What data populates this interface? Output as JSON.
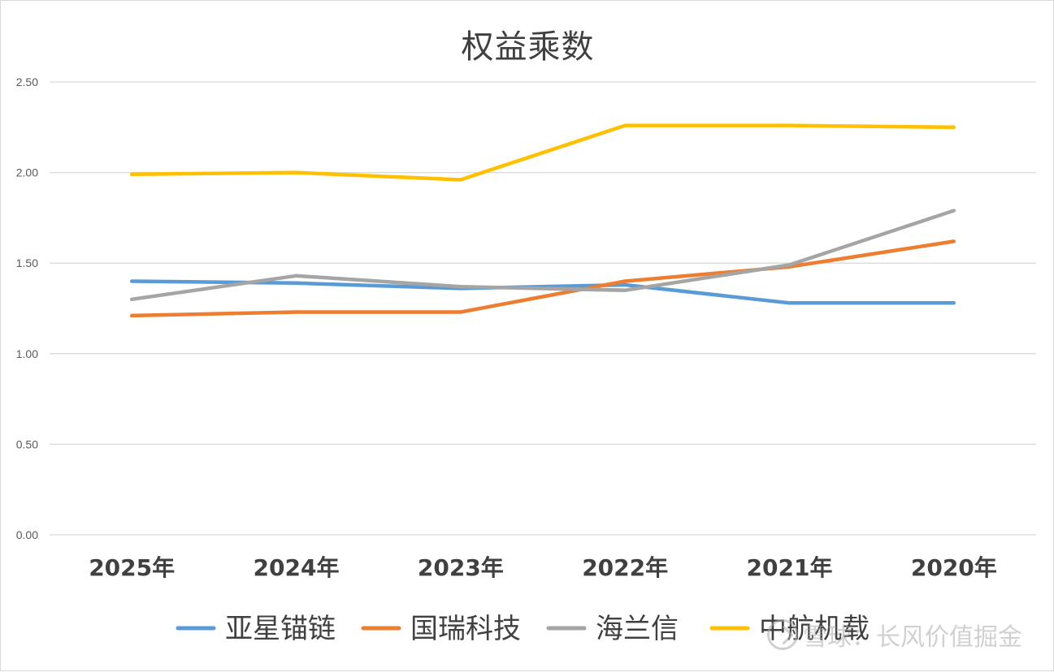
{
  "chart_data": {
    "type": "line",
    "title": "权益乘数",
    "categories": [
      "2025年",
      "2024年",
      "2023年",
      "2022年",
      "2021年",
      "2020年"
    ],
    "yticks": [
      "0.00",
      "0.50",
      "1.00",
      "1.50",
      "2.00",
      "2.50"
    ],
    "ylim": [
      0,
      2.5
    ],
    "grid": true,
    "legend_position": "bottom",
    "series": [
      {
        "name": "亚星锚链",
        "color": "#5b9bd5",
        "values": [
          1.4,
          1.39,
          1.36,
          1.38,
          1.28,
          1.28
        ]
      },
      {
        "name": "国瑞科技",
        "color": "#ed7d31",
        "values": [
          1.21,
          1.23,
          1.23,
          1.4,
          1.48,
          1.62
        ]
      },
      {
        "name": "海兰信",
        "color": "#a5a5a5",
        "values": [
          1.3,
          1.43,
          1.37,
          1.35,
          1.49,
          1.79
        ]
      },
      {
        "name": "中航机载",
        "color": "#ffc000",
        "values": [
          1.99,
          2.0,
          1.96,
          2.26,
          2.26,
          2.25
        ]
      }
    ]
  },
  "watermark": {
    "text": "雪球：长风价值掘金"
  }
}
